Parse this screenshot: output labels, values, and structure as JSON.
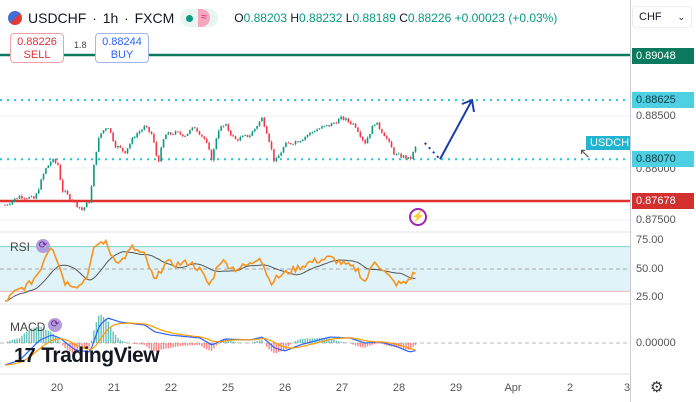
{
  "header": {
    "symbol": "USDCHF",
    "interval": "1h",
    "exchange": "FXCM",
    "sep": "·",
    "open_label": "O",
    "open": "0.88203",
    "high_label": "H",
    "high": "0.88232",
    "low_label": "L",
    "low": "0.88189",
    "close_label": "C",
    "close": "0.88226",
    "change": "+0.00023 (+0.03%)",
    "wave_icon": "≈"
  },
  "trade": {
    "sell_price": "0.88226",
    "sell_label": "SELL",
    "spread": "1.8",
    "buy_price": "0.88244",
    "buy_label": "BUY"
  },
  "axis": {
    "currency": "CHF",
    "price_ticks": [
      "0.88500",
      "0.88000",
      "0.87500"
    ],
    "rsi_ticks": [
      "75.00",
      "50.00",
      "25.00"
    ],
    "macd_ticks": [
      "0.00000"
    ]
  },
  "levels": [
    {
      "price": 0.89048,
      "label": "0.89048",
      "style": "solid",
      "color": "#0b7a5e"
    },
    {
      "price": 0.88625,
      "label": "0.88625",
      "style": "dotted",
      "color": "#26c6da"
    },
    {
      "price": 0.8807,
      "label": "0.88070",
      "style": "dotted",
      "color": "#26c6da"
    },
    {
      "price": 0.87678,
      "label": "0.87678",
      "style": "solid",
      "color": "#e0312f"
    }
  ],
  "symbol_tag": "USDCHF",
  "indicators": {
    "rsi": "RSI",
    "macd": "MACD"
  },
  "logo": "TradingView",
  "colors": {
    "up": "#089981",
    "down": "#f23645",
    "rsi": "#f7931e",
    "rsi_ma": "#555555",
    "macd": "#2962ff",
    "signal": "#ff9800",
    "arrow": "#1a3ea8"
  },
  "chart_data": {
    "type": "candlestick",
    "x_ticks": [
      "20",
      "21",
      "22",
      "25",
      "26",
      "27",
      "28",
      "29",
      "Apr",
      "2",
      "3"
    ],
    "price": {
      "x": [
        19.09,
        19.35,
        19.61,
        19.79,
        19.91,
        20.02,
        20.09,
        20.32,
        20.44,
        20.58,
        20.67,
        20.75,
        20.89,
        21.02,
        21.19,
        21.37,
        21.54,
        21.67,
        21.77,
        21.89,
        22.07,
        22.25,
        22.42,
        22.6,
        22.72,
        22.82,
        22.95,
        25.12,
        25.39,
        25.6,
        25.7,
        25.82,
        26.0,
        26.26,
        26.53,
        26.79,
        27.0,
        27.23,
        27.4,
        27.58,
        27.75,
        27.93,
        28.11,
        28.19,
        28.33
      ],
      "close": [
        0.87641,
        0.87726,
        0.87697,
        0.87969,
        0.88063,
        0.88016,
        0.87782,
        0.8766,
        0.87594,
        0.87688,
        0.8811,
        0.88298,
        0.88391,
        0.88204,
        0.88138,
        0.88298,
        0.88373,
        0.88298,
        0.88035,
        0.88298,
        0.88316,
        0.88298,
        0.88373,
        0.88251,
        0.88063,
        0.88345,
        0.88391,
        0.88251,
        0.88298,
        0.88457,
        0.88298,
        0.88035,
        0.88204,
        0.88251,
        0.88345,
        0.88391,
        0.88457,
        0.88391,
        0.88223,
        0.8842,
        0.88298,
        0.8811,
        0.88091,
        0.88063,
        0.88223
      ]
    },
    "rsi": {
      "x": [
        19.09,
        19.26,
        19.53,
        19.7,
        19.82,
        19.91,
        20.02,
        20.14,
        20.4,
        20.54,
        20.67,
        20.84,
        20.96,
        21.11,
        21.32,
        21.54,
        21.72,
        21.89,
        22.07,
        22.33,
        22.51,
        22.68,
        22.86,
        25.12,
        25.39,
        25.56,
        25.74,
        25.95,
        26.18,
        26.44,
        26.79,
        27.05,
        27.28,
        27.4,
        27.58,
        27.75,
        27.93,
        28.11,
        28.19,
        28.33
      ],
      "values": [
        21,
        29,
        37,
        49,
        65,
        72,
        56,
        38,
        35,
        45,
        71,
        75,
        62,
        56,
        69,
        62,
        38,
        56,
        54,
        56,
        49,
        35,
        58,
        50,
        54,
        62,
        38,
        45,
        50,
        56,
        60,
        54,
        49,
        38,
        58,
        47,
        37,
        37,
        42,
        49
      ],
      "ylim": [
        25,
        75
      ],
      "band": [
        30,
        70
      ]
    },
    "macd": {
      "x": [
        19.09,
        19.35,
        19.7,
        19.91,
        20.05,
        20.32,
        20.58,
        20.75,
        20.89,
        21.11,
        21.54,
        21.72,
        21.98,
        22.51,
        22.72,
        22.95,
        25.39,
        25.6,
        25.82,
        26.0,
        26.26,
        26.79,
        27.14,
        27.4,
        27.67,
        27.93,
        28.19,
        28.33
      ],
      "values": [
        -0.00066,
        -0.00051,
        9e-05,
        0.00024,
        0.00015,
        -0.00021,
        -0.00027,
        0.00054,
        0.00075,
        0.00063,
        0.00054,
        0.00033,
        0.00024,
        0.00015,
        -6e-05,
        0.00012,
        9e-05,
        0.00018,
        -0.00015,
        -0.00024,
        -6e-05,
        0.00018,
        0.00015,
        0,
        3e-05,
        -9e-05,
        -0.00027,
        -0.00021
      ]
    },
    "projection": {
      "from": 0.88223,
      "via": 0.8807,
      "to": 0.88625
    }
  }
}
